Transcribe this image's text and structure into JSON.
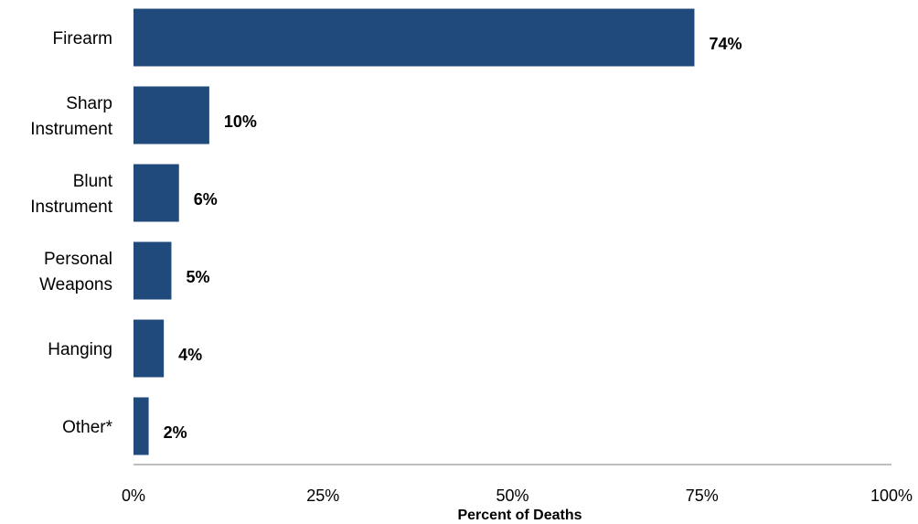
{
  "chart_data": {
    "type": "bar",
    "orientation": "horizontal",
    "categories": [
      "Firearm",
      "Sharp Instrument",
      "Blunt Instrument",
      "Personal Weapons",
      "Hanging",
      "Other*"
    ],
    "values": [
      74,
      10,
      6,
      5,
      4,
      2
    ],
    "value_labels": [
      "74%",
      "10%",
      "6%",
      "5%",
      "4%",
      "2%"
    ],
    "xlabel": "Percent of Deaths",
    "ylabel": "",
    "xlim": [
      0,
      100
    ],
    "xticks": [
      0,
      25,
      50,
      75,
      100
    ],
    "xtick_labels": [
      "0%",
      "25%",
      "50%",
      "75%",
      "100%"
    ],
    "grid": false,
    "legend": "none",
    "colors": {
      "bar": "#214a7c",
      "axis": "#7f7f7f"
    }
  }
}
